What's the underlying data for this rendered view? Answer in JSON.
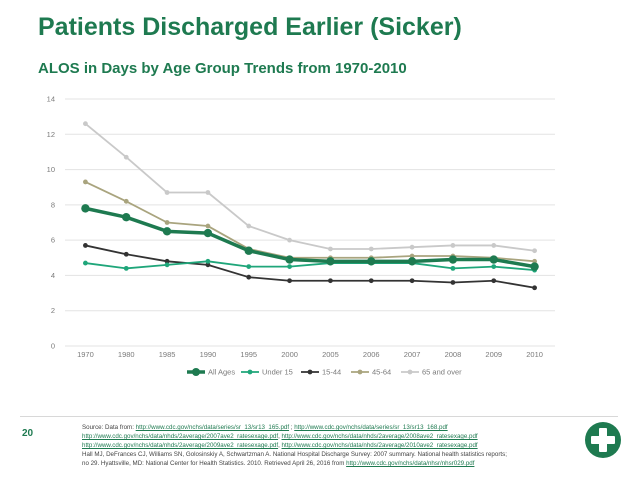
{
  "title": "Patients Discharged Earlier (Sicker)",
  "slide_number": "20",
  "source": {
    "prefix": "Source: Data from: ",
    "link1": "http://www.cdc.gov/nchs/data/series/sr_13/sr13_165.pdf",
    "sep1": " ; ",
    "link2": "http://www.cdc.gov/nchs/data/series/sr_13/sr13_168.pdf",
    "link3": "http://www.cdc.gov/nchs/data/nhds/2average/2007ave2_ratesexage.pdf",
    "link4": "http://www.cdc.gov/nchs/data/nhds/2average/2008ave2_ratesexage.pdf",
    "link5": "http://www.cdc.gov/nchs/data/nhds/2average/2009ave2_ratesexage.pdf",
    "link6": "http://www.cdc.gov/nchs/data/nhds/2average/2010ave2_ratesexage.pdf",
    "citation1": "Hall MJ, DeFrances CJ, Williams SN, Golosinskiy A, Schwartzman A. National Hospital Discharge Survey: 2007 summary. National health statistics reports;",
    "citation2": "no 29. Hyattsville, MD: National Center for Health Statistics. 2010. Retrieved April 26, 2016 from ",
    "link7": "http://www.cdc.gov/nchs/data/nhsr/nhsr029.pdf"
  },
  "colors": {
    "title": "#1e7a50",
    "grid": "#e3e3e3",
    "axis_text": "#7a7a7a"
  },
  "logo_icon": "medical-cross-icon",
  "chart_data": {
    "type": "line",
    "title": "ALOS in Days by Age Group Trends from 1970-2010",
    "xlabel": "",
    "ylabel": "",
    "categories": [
      "1970",
      "1980",
      "1985",
      "1990",
      "1995",
      "2000",
      "2005",
      "2006",
      "2007",
      "2008",
      "2009",
      "2010"
    ],
    "ylim": [
      0,
      14
    ],
    "yticks": [
      0,
      2,
      4,
      6,
      8,
      10,
      12,
      14
    ],
    "grid": true,
    "legend_position": "bottom",
    "series": [
      {
        "name": "All Ages",
        "color": "#1e7a50",
        "values": [
          7.8,
          7.3,
          6.5,
          6.4,
          5.4,
          4.9,
          4.8,
          4.8,
          4.8,
          4.9,
          4.9,
          4.5
        ]
      },
      {
        "name": "Under 15",
        "color": "#1fa67a",
        "values": [
          4.7,
          4.4,
          4.6,
          4.8,
          4.5,
          4.5,
          4.7,
          4.7,
          4.7,
          4.4,
          4.5,
          4.3
        ]
      },
      {
        "name": "15-44",
        "color": "#333333",
        "values": [
          5.7,
          5.2,
          4.8,
          4.6,
          3.9,
          3.7,
          3.7,
          3.7,
          3.7,
          3.6,
          3.7,
          3.3
        ]
      },
      {
        "name": "45-64",
        "color": "#a9a47e",
        "values": [
          9.3,
          8.2,
          7.0,
          6.8,
          5.5,
          5.0,
          5.0,
          5.0,
          5.1,
          5.1,
          5.0,
          4.8
        ]
      },
      {
        "name": "65 and over",
        "color": "#c9c9c9",
        "values": [
          12.6,
          10.7,
          8.7,
          8.7,
          6.8,
          6.0,
          5.5,
          5.5,
          5.6,
          5.7,
          5.7,
          5.4
        ]
      }
    ]
  }
}
